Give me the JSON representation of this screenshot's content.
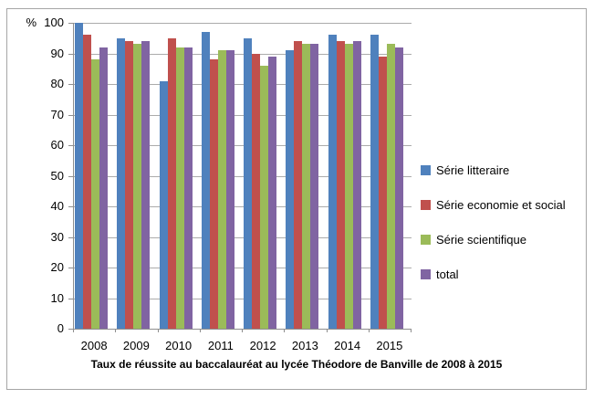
{
  "chart_data": {
    "type": "bar",
    "title": "Taux de réussite au baccalauréat au lycée Théodore de Banville de 2008 à 2015",
    "categories": [
      "2008",
      "2009",
      "2010",
      "2011",
      "2012",
      "2013",
      "2014",
      "2015"
    ],
    "series": [
      {
        "name": "Série litteraire",
        "color": "#4F81BD",
        "values": [
          100,
          95,
          81,
          97,
          95,
          91,
          96,
          96
        ]
      },
      {
        "name": "Série economie et social",
        "color": "#C0504D",
        "values": [
          96,
          94,
          95,
          88,
          90,
          94,
          94,
          89
        ]
      },
      {
        "name": "Série scientifique",
        "color": "#9BBB59",
        "values": [
          88,
          93,
          92,
          91,
          86,
          93,
          93,
          93
        ]
      },
      {
        "name": "total",
        "color": "#8064A2",
        "values": [
          92,
          94,
          92,
          91,
          89,
          93,
          94,
          92
        ]
      }
    ],
    "xlabel": "",
    "ylabel": "%",
    "ylim": [
      0,
      100
    ],
    "yticks": [
      0,
      10,
      20,
      30,
      40,
      50,
      60,
      70,
      80,
      90,
      100
    ],
    "grid": true,
    "legend_position": "right"
  },
  "colors": {
    "gridline": "#ABABAB",
    "axis": "#8E8E8E",
    "frame_border": "#A6A6A6",
    "background": "#FFFFFF",
    "text": "#000000"
  }
}
